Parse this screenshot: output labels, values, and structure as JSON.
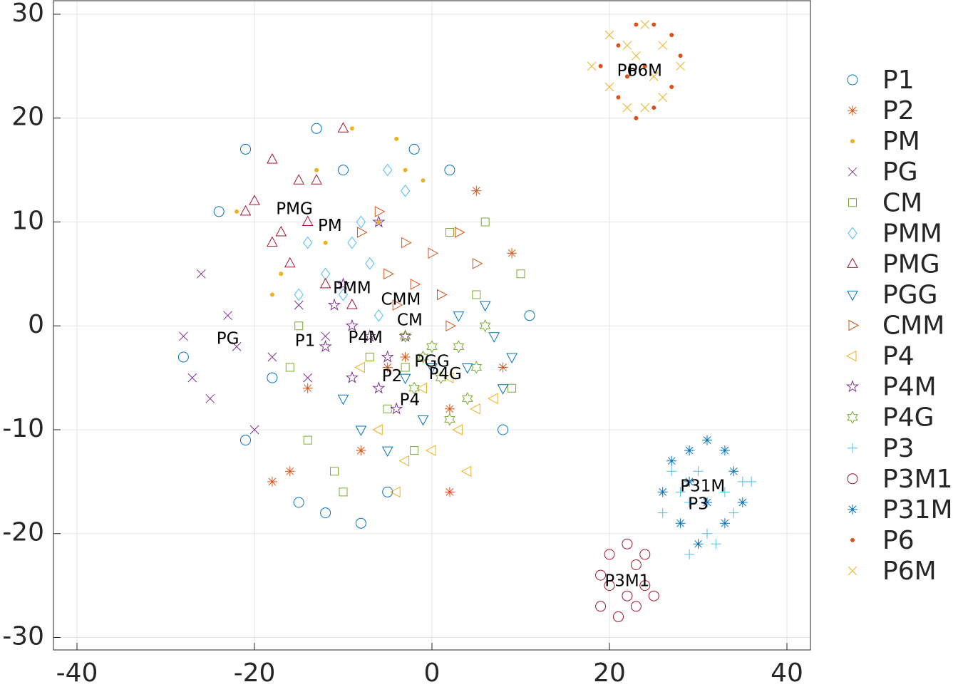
{
  "chart_data": {
    "type": "scatter",
    "xlim": [
      -42.65,
      42.65
    ],
    "ylim": [
      -31.2,
      31.3
    ],
    "xticks": [
      -40,
      -20,
      0,
      20,
      40
    ],
    "yticks": [
      -30,
      -20,
      -10,
      0,
      10,
      20,
      30
    ],
    "grid": true,
    "legend": "outside-right",
    "series": [
      {
        "name": "P1",
        "color": "#0072BD",
        "marker": "circle",
        "x": [
          -28,
          -21,
          -24,
          -10,
          -2,
          2,
          11,
          8,
          -8,
          -15,
          -21,
          -18,
          -12,
          -5,
          -13
        ],
        "values": [
          -3,
          17,
          11,
          15,
          17,
          15,
          1,
          -10,
          -19,
          -17,
          -11,
          -5,
          -18,
          -16,
          19
        ]
      },
      {
        "name": "P2",
        "color": "#D95319",
        "marker": "asterisk",
        "x": [
          -16,
          -18,
          -14,
          -8,
          2,
          5,
          9,
          2,
          -3,
          8,
          -5
        ],
        "values": [
          -14,
          -15,
          -6,
          -12,
          -16,
          13,
          7,
          -8,
          -3,
          -4,
          -4
        ]
      },
      {
        "name": "PM",
        "color": "#EDB120",
        "marker": "dot",
        "x": [
          -22,
          -18,
          -13,
          -9,
          -4,
          -1,
          -6,
          -17,
          -12,
          -3
        ],
        "values": [
          11,
          3,
          15,
          19,
          18,
          14,
          10,
          5,
          8,
          15
        ]
      },
      {
        "name": "PG",
        "color": "#7E2F8E",
        "marker": "x",
        "x": [
          -28,
          -27,
          -25,
          -20,
          -26,
          -23,
          -18,
          -15,
          -12,
          -22,
          -14
        ],
        "values": [
          -1,
          -5,
          -7,
          -10,
          5,
          1,
          -3,
          2,
          -1,
          -2,
          -5
        ]
      },
      {
        "name": "CM",
        "color": "#77AC30",
        "marker": "square",
        "x": [
          -7,
          -14,
          -11,
          -10,
          -3,
          2,
          6,
          10,
          9,
          5,
          -2,
          -5,
          -16,
          -15
        ],
        "values": [
          -3,
          -11,
          -14,
          -16,
          -4,
          9,
          10,
          5,
          -6,
          3,
          -12,
          -8,
          -4,
          0
        ]
      },
      {
        "name": "PMM",
        "color": "#4DBEEE",
        "marker": "diamond",
        "x": [
          -15,
          -12,
          -9,
          -7,
          -5,
          -3,
          -8,
          -10,
          -14,
          -6
        ],
        "values": [
          3,
          5,
          8,
          6,
          15,
          13,
          10,
          3,
          8,
          1
        ]
      },
      {
        "name": "PMG",
        "color": "#A2142F",
        "marker": "triup",
        "x": [
          -20,
          -18,
          -15,
          -13,
          -10,
          -17,
          -14,
          -16,
          -12,
          -9,
          -18,
          -21
        ],
        "values": [
          12,
          16,
          14,
          14,
          19,
          9,
          10,
          6,
          4,
          2,
          8,
          11
        ]
      },
      {
        "name": "PGG",
        "color": "#0072BD",
        "marker": "tridown",
        "x": [
          -5,
          -8,
          -3,
          0,
          4,
          7,
          9,
          8,
          -10,
          3,
          6,
          -1
        ],
        "values": [
          -12,
          -10,
          -5,
          -4,
          -4,
          -1,
          -3,
          -6,
          -7,
          1,
          2,
          -9
        ]
      },
      {
        "name": "CMM",
        "color": "#D95319",
        "marker": "triright",
        "x": [
          -6,
          -3,
          0,
          3,
          5,
          -2,
          1,
          -5,
          -8,
          2,
          -4
        ],
        "values": [
          11,
          8,
          7,
          9,
          6,
          4,
          3,
          5,
          9,
          0,
          2
        ]
      },
      {
        "name": "P4",
        "color": "#EDB120",
        "marker": "trileft",
        "x": [
          -6,
          -3,
          0,
          3,
          5,
          7,
          -1,
          2,
          -4,
          4,
          -8
        ],
        "values": [
          -10,
          -13,
          -12,
          -10,
          -8,
          -7,
          -6,
          -5,
          -16,
          -14,
          -4
        ]
      },
      {
        "name": "P4M",
        "color": "#7E2F8E",
        "marker": "pentagram",
        "x": [
          -11,
          -9,
          -7,
          -5,
          -6,
          -4,
          -9,
          -12,
          -6,
          -10,
          -3
        ],
        "values": [
          2,
          0,
          -1,
          -3,
          -6,
          -8,
          -5,
          -2,
          10,
          4,
          -1
        ]
      },
      {
        "name": "P4G",
        "color": "#77AC30",
        "marker": "hexagram",
        "x": [
          -3,
          -1,
          1,
          3,
          5,
          4,
          2,
          -2,
          6,
          0
        ],
        "values": [
          -1,
          -3,
          -5,
          -2,
          -4,
          -7,
          -9,
          -6,
          0,
          -2
        ]
      },
      {
        "name": "P3",
        "color": "#4DBEEE",
        "marker": "plus",
        "x": [
          27,
          29,
          31,
          33,
          35,
          29,
          26,
          30,
          34,
          28,
          32,
          36
        ],
        "values": [
          -14,
          -17,
          -20,
          -16,
          -15,
          -22,
          -18,
          -14,
          -18,
          -16,
          -21,
          -15
        ]
      },
      {
        "name": "P3M1",
        "color": "#A2142F",
        "marker": "circle",
        "x": [
          19,
          20,
          22,
          23,
          24,
          25,
          21,
          19,
          22,
          20,
          23,
          24
        ],
        "values": [
          -24,
          -22,
          -21,
          -23,
          -25,
          -26,
          -28,
          -27,
          -26,
          -25,
          -27,
          -22
        ]
      },
      {
        "name": "P31M",
        "color": "#0072BD",
        "marker": "asterisk",
        "x": [
          27,
          29,
          31,
          33,
          34,
          35,
          33,
          30,
          28,
          26,
          29,
          31
        ],
        "values": [
          -13,
          -12,
          -11,
          -12,
          -14,
          -17,
          -19,
          -21,
          -19,
          -16,
          -15,
          -17
        ]
      },
      {
        "name": "P6",
        "color": "#D95319",
        "marker": "dot",
        "x": [
          19,
          21,
          23,
          25,
          27,
          28,
          27,
          25,
          23,
          21,
          24,
          22
        ],
        "values": [
          25,
          27,
          29,
          29,
          28,
          26,
          23,
          21,
          20,
          22,
          25,
          24
        ]
      },
      {
        "name": "P6M",
        "color": "#EDB120",
        "marker": "x",
        "x": [
          18,
          20,
          22,
          24,
          26,
          28,
          26,
          24,
          22,
          20,
          23,
          25
        ],
        "values": [
          25,
          28,
          27,
          29,
          27,
          25,
          22,
          21,
          21,
          23,
          26,
          24
        ]
      }
    ],
    "annotations": [
      {
        "text": "PMG",
        "x": -15.5,
        "y": 11.2
      },
      {
        "text": "PM",
        "x": -11.5,
        "y": 9.6
      },
      {
        "text": "PMM",
        "x": -9,
        "y": 3.6
      },
      {
        "text": "CMM",
        "x": -3.5,
        "y": 2.5
      },
      {
        "text": "CM",
        "x": -2.5,
        "y": 0.5
      },
      {
        "text": "PG",
        "x": -23,
        "y": -1.3
      },
      {
        "text": "P1",
        "x": -14.3,
        "y": -1.5
      },
      {
        "text": "P4M",
        "x": -7.5,
        "y": -1.2
      },
      {
        "text": "PGG",
        "x": 0,
        "y": -3.5
      },
      {
        "text": "P4G",
        "x": 1.5,
        "y": -4.7
      },
      {
        "text": "P2",
        "x": -4.5,
        "y": -4.9
      },
      {
        "text": "P4",
        "x": -2.5,
        "y": -7.2
      },
      {
        "text": "P6M",
        "x": 24,
        "y": 24.5
      },
      {
        "text": "P6",
        "x": 22,
        "y": 24.5
      },
      {
        "text": "P31M",
        "x": 30.5,
        "y": -15.5
      },
      {
        "text": "P3",
        "x": 30,
        "y": -17.2
      },
      {
        "text": "P3M1",
        "x": 22,
        "y": -24.6
      }
    ]
  }
}
